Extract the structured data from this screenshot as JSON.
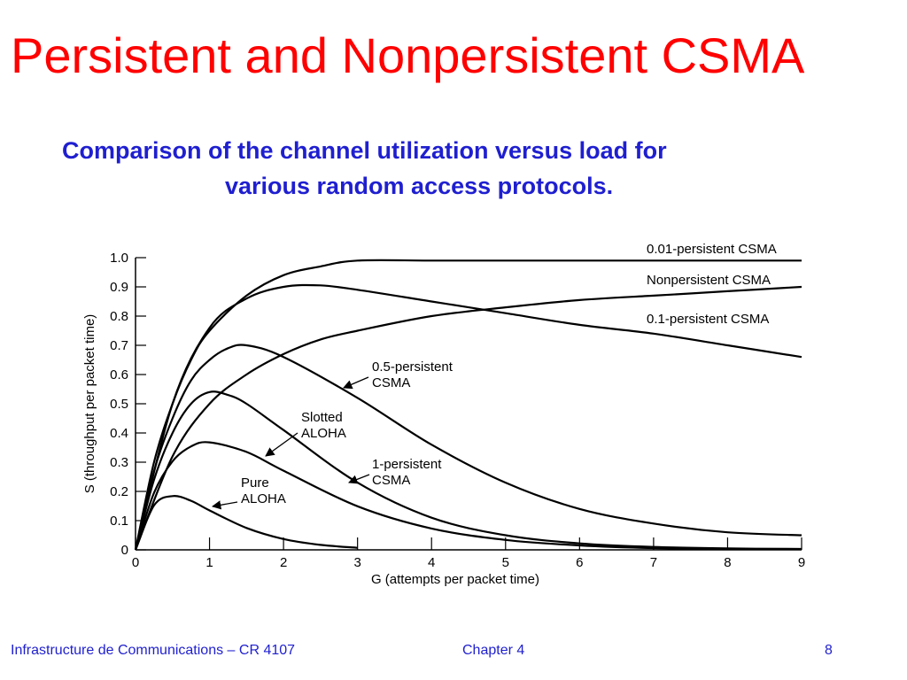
{
  "slide": {
    "title": "Persistent and Nonpersistent CSMA",
    "subtitle_line1": "Comparison of the channel utilization versus load for",
    "subtitle_line2": "various random access protocols.",
    "footer_left": "Infrastructure de Communications – CR 4107",
    "footer_center": "Chapter 4",
    "footer_right": "8"
  },
  "chart_data": {
    "type": "line",
    "xlabel": "G (attempts per packet time)",
    "ylabel": "S (throughput per packet time)",
    "xlim": [
      0,
      9
    ],
    "ylim": [
      0,
      1.0
    ],
    "xticks": [
      0,
      1,
      2,
      3,
      4,
      5,
      6,
      7,
      8,
      9
    ],
    "yticks": [
      0,
      0.1,
      0.2,
      0.3,
      0.4,
      0.5,
      0.6,
      0.7,
      0.8,
      0.9,
      1.0
    ],
    "ytick_labels": [
      "0",
      "0.1",
      "0.2",
      "0.3",
      "0.4",
      "0.5",
      "0.6",
      "0.7",
      "0.8",
      "0.9",
      "1.0"
    ],
    "grid": false,
    "series": [
      {
        "name": "Pure ALOHA",
        "label_lines": [
          "Pure",
          "ALOHA"
        ],
        "x": [
          0,
          0.25,
          0.5,
          0.75,
          1.0,
          1.5,
          2.0,
          2.5,
          3.0
        ],
        "y": [
          0,
          0.152,
          0.184,
          0.168,
          0.135,
          0.075,
          0.037,
          0.017,
          0.007
        ]
      },
      {
        "name": "Slotted ALOHA",
        "label_lines": [
          "Slotted",
          "ALOHA"
        ],
        "x": [
          0,
          0.25,
          0.5,
          0.75,
          1.0,
          1.5,
          2.0,
          3.0,
          4.0,
          5.0,
          6.0,
          7.0,
          8.0
        ],
        "y": [
          0,
          0.195,
          0.303,
          0.354,
          0.368,
          0.335,
          0.271,
          0.149,
          0.073,
          0.034,
          0.015,
          0.006,
          0.003
        ]
      },
      {
        "name": "1-persistent CSMA",
        "label_lines": [
          "1-persistent",
          "CSMA"
        ],
        "x": [
          0,
          0.25,
          0.5,
          0.75,
          1.0,
          1.25,
          1.5,
          2.0,
          3.0,
          4.0,
          5.0,
          6.0,
          7.0,
          8.0,
          9.0
        ],
        "y": [
          0,
          0.24,
          0.4,
          0.5,
          0.54,
          0.53,
          0.5,
          0.41,
          0.23,
          0.11,
          0.05,
          0.022,
          0.01,
          0.005,
          0.003
        ]
      },
      {
        "name": "0.5-persistent CSMA",
        "label_lines": [
          "0.5-persistent",
          "CSMA"
        ],
        "x": [
          0,
          0.25,
          0.5,
          0.75,
          1.0,
          1.25,
          1.5,
          2.0,
          3.0,
          4.0,
          5.0,
          6.0,
          7.0,
          8.0,
          9.0
        ],
        "y": [
          0,
          0.27,
          0.45,
          0.58,
          0.65,
          0.69,
          0.7,
          0.66,
          0.52,
          0.36,
          0.23,
          0.14,
          0.09,
          0.06,
          0.05
        ]
      },
      {
        "name": "0.1-persistent CSMA",
        "label_lines": [
          "0.1-persistent CSMA"
        ],
        "x": [
          0,
          0.5,
          1.0,
          1.5,
          2.0,
          2.5,
          3.0,
          4.0,
          5.0,
          6.0,
          7.0,
          8.0,
          9.0
        ],
        "y": [
          0,
          0.5,
          0.76,
          0.86,
          0.9,
          0.905,
          0.89,
          0.85,
          0.81,
          0.77,
          0.74,
          0.7,
          0.66
        ]
      },
      {
        "name": "Nonpersistent CSMA",
        "label_lines": [
          "Nonpersistent CSMA"
        ],
        "x": [
          0,
          0.5,
          1.0,
          1.5,
          2.0,
          2.5,
          3.0,
          4.0,
          5.0,
          6.0,
          7.0,
          8.0,
          9.0
        ],
        "y": [
          0,
          0.32,
          0.5,
          0.6,
          0.67,
          0.72,
          0.75,
          0.8,
          0.83,
          0.855,
          0.87,
          0.885,
          0.9
        ]
      },
      {
        "name": "0.01-persistent CSMA",
        "label_lines": [
          "0.01-persistent CSMA"
        ],
        "x": [
          0,
          0.25,
          0.5,
          0.75,
          1.0,
          1.5,
          2.0,
          2.5,
          3.0,
          4.0,
          5.0,
          6.0,
          7.0,
          8.0,
          9.0
        ],
        "y": [
          0,
          0.3,
          0.5,
          0.65,
          0.75,
          0.87,
          0.94,
          0.97,
          0.99,
          0.99,
          0.99,
          0.99,
          0.99,
          0.99,
          0.99
        ]
      }
    ]
  }
}
